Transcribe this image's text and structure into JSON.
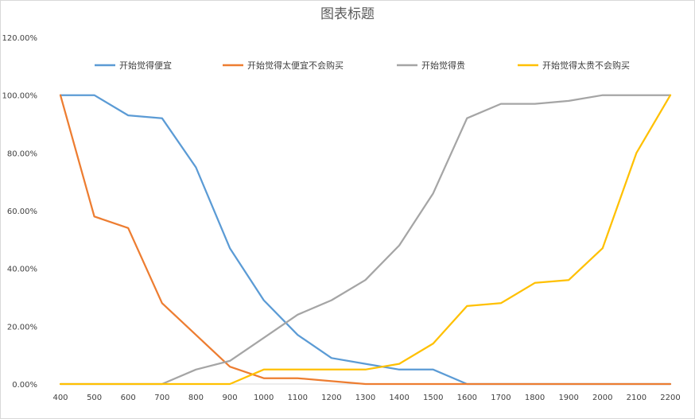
{
  "chart_data": {
    "type": "line",
    "title": "图表标题",
    "xlabel": "",
    "ylabel": "",
    "categories": [
      "400",
      "500",
      "600",
      "700",
      "800",
      "900",
      "1000",
      "1100",
      "1200",
      "1300",
      "1400",
      "1500",
      "1600",
      "1700",
      "1800",
      "1900",
      "2000",
      "2100",
      "2200"
    ],
    "ylim": [
      0,
      120
    ],
    "yticks": [
      "0.00%",
      "20.00%",
      "40.00%",
      "60.00%",
      "80.00%",
      "100.00%",
      "120.00%"
    ],
    "legend_position": "top",
    "grid": false,
    "series": [
      {
        "name": "开始觉得便宜",
        "color": "#5B9BD5",
        "values": [
          100,
          100,
          93,
          92,
          75,
          47,
          29,
          17,
          9,
          7,
          5,
          5,
          0,
          0,
          0,
          0,
          0,
          0,
          0
        ]
      },
      {
        "name": "开始觉得太便宜不会购买",
        "color": "#ED7D31",
        "values": [
          100,
          58,
          54,
          28,
          17,
          6,
          2,
          2,
          1,
          0,
          0,
          0,
          0,
          0,
          0,
          0,
          0,
          0,
          0
        ]
      },
      {
        "name": "开始觉得贵",
        "color": "#A5A5A5",
        "values": [
          0,
          0,
          0,
          0,
          5,
          8,
          16,
          24,
          29,
          36,
          48,
          66,
          92,
          97,
          97,
          98,
          100,
          100,
          100
        ]
      },
      {
        "name": "开始觉得太贵不会购买",
        "color": "#FFC000",
        "values": [
          0,
          0,
          0,
          0,
          0,
          0,
          5,
          5,
          5,
          5,
          7,
          14,
          27,
          28,
          35,
          36,
          47,
          80,
          100
        ]
      }
    ]
  }
}
